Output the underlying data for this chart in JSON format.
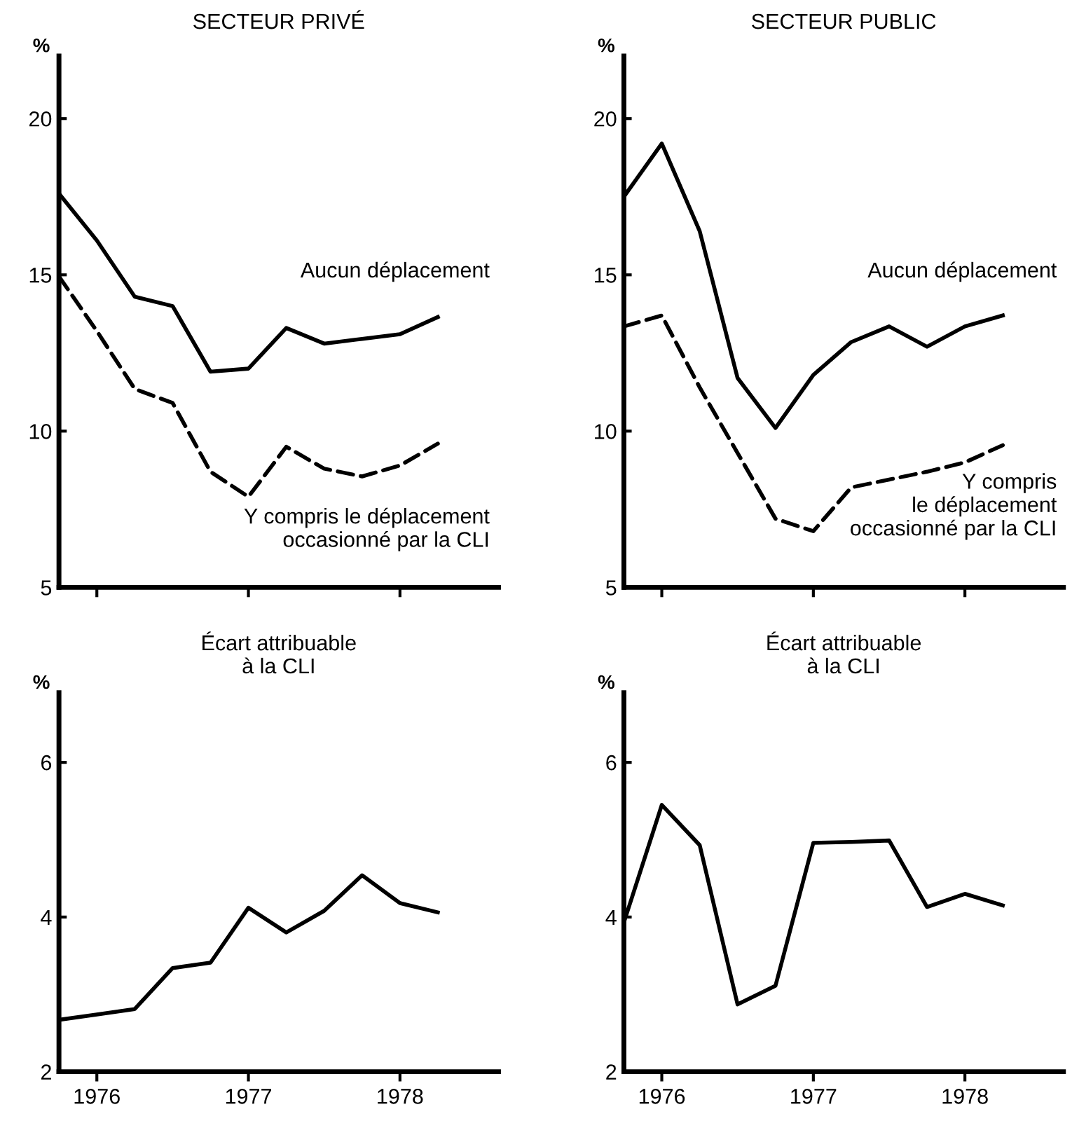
{
  "chart_data": [
    {
      "type": "line",
      "title": "SECTEUR PRIVÉ",
      "ylabel": "%",
      "xlim": [
        1975.75,
        1978.65
      ],
      "xticks": [
        1976,
        1977,
        1978
      ],
      "ylim": [
        5,
        22
      ],
      "yticks": [
        5,
        10,
        15,
        20
      ],
      "tick_labels": "y",
      "grid": false,
      "legend": false,
      "x": [
        1975.75,
        1976.0,
        1976.25,
        1976.5,
        1976.75,
        1977.0,
        1977.25,
        1977.5,
        1977.75,
        1978.0,
        1978.25
      ],
      "series": [
        {
          "name": "Aucun déplacement",
          "color": "#000000",
          "line_style": "solid",
          "values": [
            17.6,
            16.1,
            14.3,
            14.0,
            11.9,
            12.0,
            13.3,
            12.8,
            12.95,
            13.1,
            13.65
          ]
        },
        {
          "name": "Y compris le déplacement\noccasionné par la CLI",
          "color": "#000000",
          "line_style": "dashed",
          "values": [
            14.95,
            13.2,
            11.35,
            10.9,
            8.7,
            7.9,
            9.5,
            8.8,
            8.55,
            8.9,
            9.6
          ]
        }
      ]
    },
    {
      "type": "line",
      "title": "SECTEUR PUBLIC",
      "ylabel": "%",
      "xlim": [
        1975.75,
        1978.65
      ],
      "xticks": [
        1976,
        1977,
        1978
      ],
      "ylim": [
        5,
        22
      ],
      "yticks": [
        5,
        10,
        15,
        20
      ],
      "tick_labels": "y",
      "grid": false,
      "legend": false,
      "x": [
        1975.75,
        1976.0,
        1976.25,
        1976.5,
        1976.75,
        1977.0,
        1977.25,
        1977.5,
        1977.75,
        1978.0,
        1978.25
      ],
      "series": [
        {
          "name": "Aucun déplacement",
          "color": "#000000",
          "line_style": "solid",
          "values": [
            17.5,
            19.2,
            16.4,
            11.7,
            10.1,
            11.8,
            12.85,
            13.35,
            12.7,
            13.35,
            13.7
          ]
        },
        {
          "name": "Y compris\nle déplacement\noccasionné par la CLI",
          "color": "#000000",
          "line_style": "dashed",
          "values": [
            13.35,
            13.7,
            11.4,
            9.3,
            7.2,
            6.8,
            8.2,
            8.45,
            8.7,
            9.0,
            9.55
          ]
        }
      ]
    },
    {
      "type": "line",
      "title": "Écart attribuable\nà la CLI",
      "ylabel": "%",
      "xlim": [
        1975.75,
        1978.65
      ],
      "xticks": [
        1976,
        1977,
        1978
      ],
      "ylim": [
        2,
        6.9
      ],
      "yticks": [
        2,
        4,
        6
      ],
      "grid": false,
      "legend": false,
      "x": [
        1975.75,
        1976.0,
        1976.25,
        1976.5,
        1976.75,
        1977.0,
        1977.25,
        1977.5,
        1977.75,
        1978.0,
        1978.25
      ],
      "series": [
        {
          "color": "#000000",
          "line_style": "solid",
          "values": [
            2.67,
            2.74,
            2.81,
            3.34,
            3.41,
            4.12,
            3.8,
            4.08,
            4.54,
            4.18,
            4.06
          ]
        }
      ]
    },
    {
      "type": "line",
      "title": "Écart attribuable\nà la CLI",
      "ylabel": "%",
      "xlim": [
        1975.75,
        1978.65
      ],
      "xticks": [
        1976,
        1977,
        1978
      ],
      "ylim": [
        2,
        6.9
      ],
      "yticks": [
        2,
        4,
        6
      ],
      "grid": false,
      "legend": false,
      "x": [
        1975.75,
        1976.0,
        1976.25,
        1976.5,
        1976.75,
        1977.0,
        1977.25,
        1977.5,
        1977.75,
        1978.0,
        1978.25
      ],
      "series": [
        {
          "color": "#000000",
          "line_style": "solid",
          "values": [
            3.93,
            5.45,
            4.93,
            2.87,
            3.11,
            4.96,
            4.97,
            4.99,
            4.13,
            4.3,
            4.15
          ]
        }
      ]
    }
  ]
}
